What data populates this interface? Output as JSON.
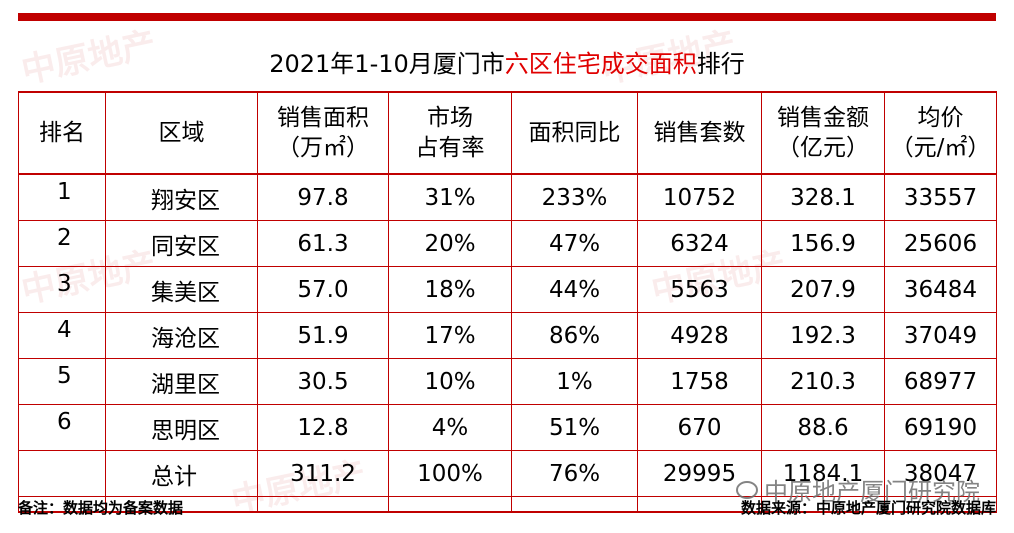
{
  "title": {
    "prefix": "2021年1-10月厦门市",
    "highlight": "六区住宅成交面积",
    "suffix": "排行"
  },
  "table": {
    "headers": [
      {
        "line1": "排名",
        "line2": ""
      },
      {
        "line1": "区域",
        "line2": ""
      },
      {
        "line1": "销售面积",
        "line2": "（万㎡）"
      },
      {
        "line1": "市场",
        "line2": "占有率"
      },
      {
        "line1": "面积同比",
        "line2": ""
      },
      {
        "line1": "销售套数",
        "line2": ""
      },
      {
        "line1": "销售金额",
        "line2": "（亿元）"
      },
      {
        "line1": "均价",
        "line2": "（元/㎡）"
      }
    ],
    "rows": [
      {
        "rank": "1",
        "district": "翔安区",
        "area": "97.8",
        "share": "31%",
        "yoy": "233%",
        "units": "10752",
        "amount": "328.1",
        "price": "33557"
      },
      {
        "rank": "2",
        "district": "同安区",
        "area": "61.3",
        "share": "20%",
        "yoy": "47%",
        "units": "6324",
        "amount": "156.9",
        "price": "25606"
      },
      {
        "rank": "3",
        "district": "集美区",
        "area": "57.0",
        "share": "18%",
        "yoy": "44%",
        "units": "5563",
        "amount": "207.9",
        "price": "36484"
      },
      {
        "rank": "4",
        "district": "海沧区",
        "area": "51.9",
        "share": "17%",
        "yoy": "86%",
        "units": "4928",
        "amount": "192.3",
        "price": "37049"
      },
      {
        "rank": "5",
        "district": "湖里区",
        "area": "30.5",
        "share": "10%",
        "yoy": "1%",
        "units": "1758",
        "amount": "210.3",
        "price": "68977"
      },
      {
        "rank": "6",
        "district": "思明区",
        "area": "12.8",
        "share": "4%",
        "yoy": "51%",
        "units": "670",
        "amount": "88.6",
        "price": "69190"
      },
      {
        "rank": "",
        "district": "总计",
        "area": "311.2",
        "share": "100%",
        "yoy": "76%",
        "units": "29995",
        "amount": "1184.1",
        "price": "38047"
      }
    ]
  },
  "footer": {
    "note": "备注：数据均为备案数据",
    "source": "数据来源：中原地产厦门研究院数据库"
  },
  "brand": {
    "account_name": "中原地产厦门研究院"
  },
  "watermark_text": "中原地产",
  "colors": {
    "accent_red": "#c00000",
    "highlight_red": "#e00000"
  }
}
